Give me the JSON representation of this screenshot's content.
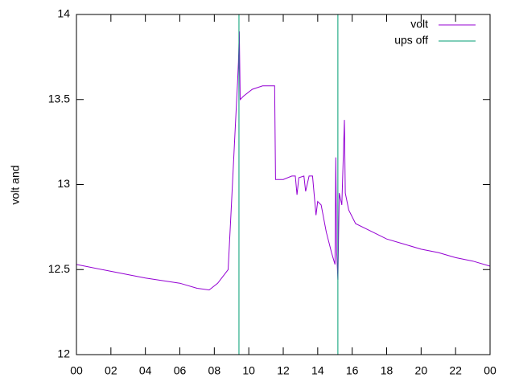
{
  "chart_data": {
    "type": "line",
    "ylabel": "volt and",
    "xlim": [
      0,
      24
    ],
    "xticks": [
      {
        "value": 0,
        "label": "00"
      },
      {
        "value": 2,
        "label": "02"
      },
      {
        "value": 4,
        "label": "04"
      },
      {
        "value": 6,
        "label": "06"
      },
      {
        "value": 8,
        "label": "08"
      },
      10,
      12,
      14,
      16,
      18,
      20,
      22,
      {
        "value": 24,
        "label": "00"
      }
    ],
    "ylim": [
      12,
      14
    ],
    "yticks": [
      12,
      12.5,
      13,
      13.5,
      14
    ],
    "legend": "top-right",
    "series": [
      {
        "name": "volt",
        "color": "#9400d3",
        "x": [
          0,
          2,
          4,
          6,
          7,
          7.7,
          8.2,
          8.8,
          9.0,
          9.2,
          9.35,
          9.4,
          9.45,
          9.5,
          9.7,
          10.2,
          10.8,
          11.5,
          11.55,
          12.0,
          12.5,
          12.7,
          12.8,
          12.9,
          13.2,
          13.3,
          13.5,
          13.7,
          13.9,
          14.0,
          14.2,
          14.5,
          14.8,
          15.0,
          15.05,
          15.1,
          15.17,
          15.25,
          15.4,
          15.55,
          15.6,
          15.8,
          16.2,
          17,
          18,
          19,
          20,
          21,
          22,
          23,
          24
        ],
        "values": [
          12.53,
          12.49,
          12.45,
          12.42,
          12.39,
          12.38,
          12.42,
          12.5,
          12.9,
          13.3,
          13.6,
          13.72,
          13.9,
          13.5,
          13.52,
          13.56,
          13.58,
          13.58,
          13.03,
          13.03,
          13.05,
          13.05,
          12.94,
          13.04,
          13.05,
          12.96,
          13.05,
          13.05,
          12.82,
          12.9,
          12.88,
          12.72,
          12.6,
          12.53,
          13.16,
          12.6,
          12.44,
          12.95,
          12.88,
          13.38,
          12.95,
          12.85,
          12.77,
          12.73,
          12.68,
          12.65,
          12.62,
          12.6,
          12.57,
          12.55,
          12.52
        ]
      },
      {
        "name": "ups off",
        "color": "#009e73",
        "style": "vertical",
        "x": [
          9.43,
          15.17
        ]
      }
    ]
  }
}
